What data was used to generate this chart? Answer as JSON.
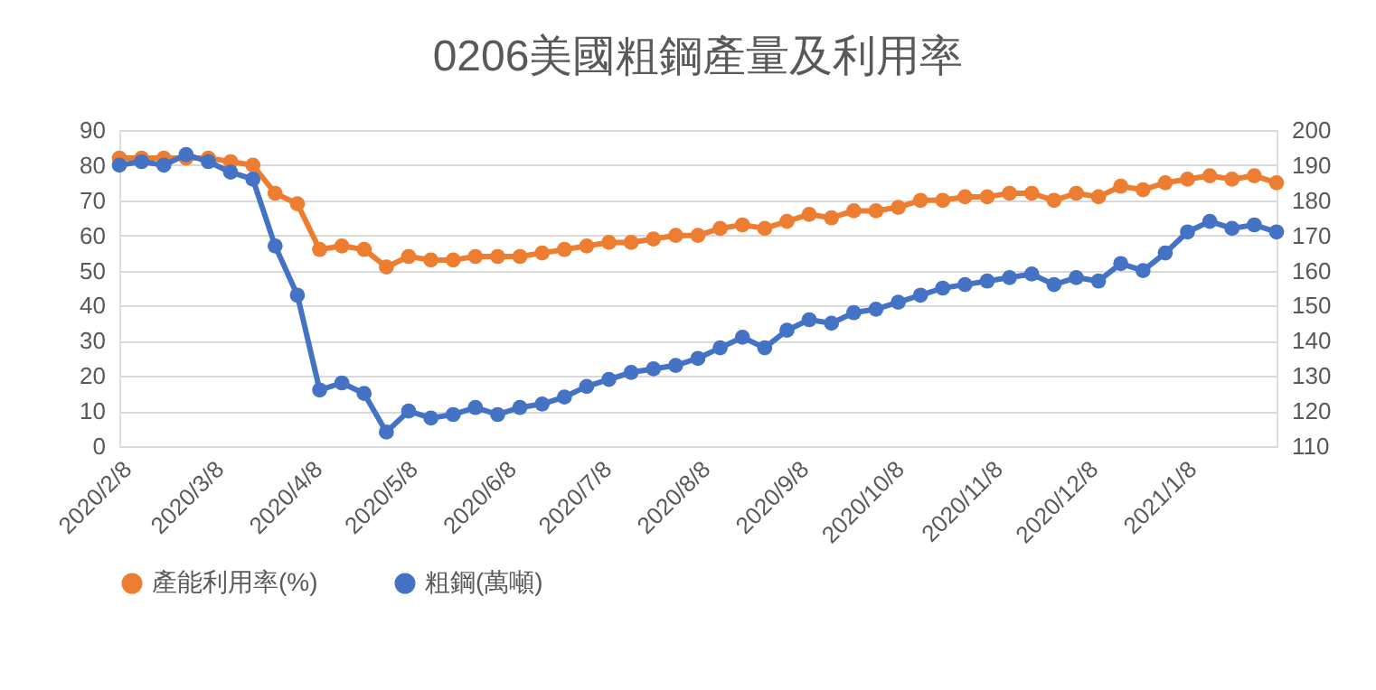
{
  "chart_data": {
    "type": "line",
    "title": "0206美國粗鋼產量及利用率",
    "x": [
      "2020-02-08",
      "2020-02-15",
      "2020-02-22",
      "2020-02-29",
      "2020-03-07",
      "2020-03-14",
      "2020-03-21",
      "2020-03-28",
      "2020-04-04",
      "2020-04-11",
      "2020-04-18",
      "2020-04-25",
      "2020-05-02",
      "2020-05-09",
      "2020-05-16",
      "2020-05-23",
      "2020-05-30",
      "2020-06-06",
      "2020-06-13",
      "2020-06-20",
      "2020-06-27",
      "2020-07-04",
      "2020-07-11",
      "2020-07-18",
      "2020-07-25",
      "2020-08-01",
      "2020-08-08",
      "2020-08-15",
      "2020-08-22",
      "2020-08-29",
      "2020-09-05",
      "2020-09-12",
      "2020-09-19",
      "2020-09-26",
      "2020-10-03",
      "2020-10-10",
      "2020-10-17",
      "2020-10-24",
      "2020-10-31",
      "2020-11-07",
      "2020-11-14",
      "2020-11-21",
      "2020-11-28",
      "2020-12-05",
      "2020-12-12",
      "2020-12-19",
      "2020-12-26",
      "2021-01-02",
      "2021-01-09",
      "2021-01-16",
      "2021-01-23",
      "2021-01-30",
      "2021-02-06"
    ],
    "series": [
      {
        "name": "產能利用率(%)",
        "color": "#ed7d31",
        "values": [
          82,
          82,
          82,
          82,
          82,
          81,
          80,
          72,
          69,
          56,
          57,
          56,
          51,
          54,
          53,
          53,
          54,
          54,
          54,
          55,
          56,
          57,
          58,
          58,
          59,
          60,
          60,
          62,
          63,
          62,
          64,
          66,
          65,
          67,
          67,
          68,
          70,
          70,
          71,
          71,
          72,
          72,
          70,
          72,
          71,
          74,
          73,
          75,
          76,
          77,
          76,
          77,
          75
        ]
      },
      {
        "name": "粗鋼(萬噸)",
        "color": "#4472c4",
        "axis": "y2",
        "values": [
          190,
          191,
          190,
          193,
          191,
          188,
          186,
          167,
          153,
          126,
          128,
          125,
          114,
          120,
          118,
          119,
          121,
          119,
          121,
          122,
          124,
          127,
          129,
          131,
          132,
          133,
          135,
          138,
          141,
          138,
          143,
          146,
          145,
          148,
          149,
          151,
          153,
          155,
          156,
          157,
          158,
          159,
          156,
          158,
          157,
          162,
          160,
          165,
          171,
          174,
          172,
          173,
          171
        ]
      }
    ],
    "xlim": [
      "2020-02-08",
      "2021-02-06"
    ],
    "xticks": [
      {
        "value": "2020-02-08",
        "label": "2020/2/8"
      },
      {
        "value": "2020-03-08",
        "label": "2020/3/8"
      },
      {
        "value": "2020-04-08",
        "label": "2020/4/8"
      },
      {
        "value": "2020-05-08",
        "label": "2020/5/8"
      },
      {
        "value": "2020-06-08",
        "label": "2020/6/8"
      },
      {
        "value": "2020-07-08",
        "label": "2020/7/8"
      },
      {
        "value": "2020-08-08",
        "label": "2020/8/8"
      },
      {
        "value": "2020-09-08",
        "label": "2020/9/8"
      },
      {
        "value": "2020-10-08",
        "label": "2020/10/8"
      },
      {
        "value": "2020-11-08",
        "label": "2020/11/8"
      },
      {
        "value": "2020-12-08",
        "label": "2020/12/8"
      },
      {
        "value": "2021-01-08",
        "label": "2021/1/8"
      }
    ],
    "ylim": [
      0,
      90
    ],
    "yticks": [
      0,
      10,
      20,
      30,
      40,
      50,
      60,
      70,
      80,
      90
    ],
    "y2lim": [
      110,
      200
    ],
    "y2ticks": [
      110,
      120,
      130,
      140,
      150,
      160,
      170,
      180,
      190,
      200
    ],
    "grid": "y",
    "legend": "bottom",
    "marker": "circle",
    "line_style": "solid"
  }
}
